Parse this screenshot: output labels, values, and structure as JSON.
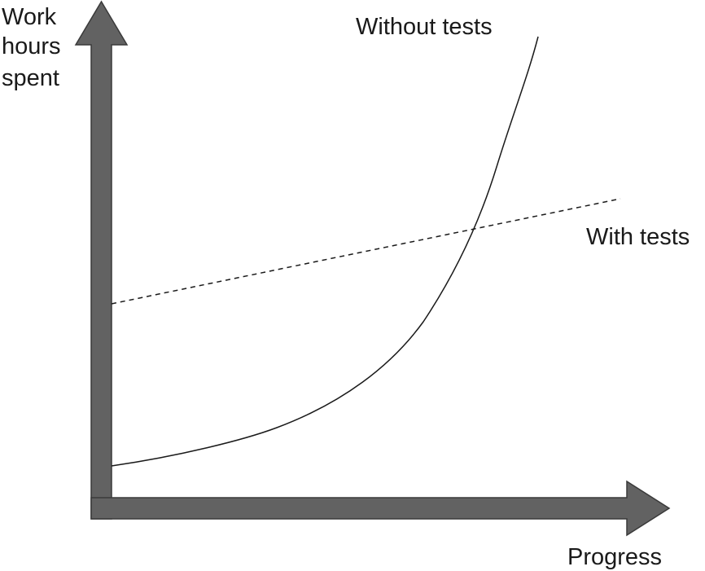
{
  "y_axis": {
    "label_lines": [
      "Work",
      "hours",
      "spent"
    ]
  },
  "x_axis": {
    "label": "Progress"
  },
  "curves": [
    {
      "label": "Without tests"
    },
    {
      "label": "With tests"
    }
  ]
}
